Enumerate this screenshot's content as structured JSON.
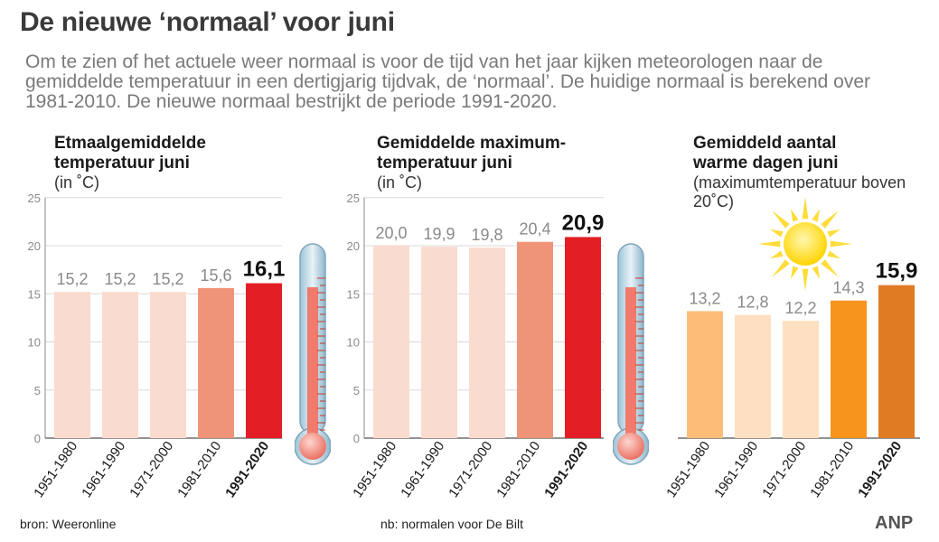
{
  "title": "De nieuwe ‘normaal’ voor juni",
  "intro": "Om te zien of het actuele weer normaal is voor de tijd van het jaar kijken meteorologen naar de gemiddelde temperatuur in een dertigjarig tijdvak, de ‘normaal’. De huidige normaal is berekend over 1981-2010. De nieuwe normaal bestrijkt de periode 1991-2020.",
  "panels": [
    {
      "title": "Etmaalgemiddelde temperatuur juni",
      "subtitle": "(in ˚C)"
    },
    {
      "title": "Gemiddelde maximum-temperatuur juni",
      "subtitle": "(in ˚C)"
    },
    {
      "title": "Gemiddeld aantal warme dagen juni",
      "subtitle": "(maximumtemperatuur boven 20˚C)"
    }
  ],
  "footer": {
    "source": "bron:  Weeronline",
    "note": "nb: normalen voor De Bilt",
    "brand": "ANP"
  },
  "icons": [
    "thermometer-icon",
    "thermometer-icon",
    "sun-icon"
  ],
  "chart_data": [
    {
      "type": "bar",
      "title": "Etmaalgemiddelde temperatuur juni",
      "ylabel": "(in ˚C)",
      "ylim": [
        0,
        25
      ],
      "yticks": [
        0,
        5,
        10,
        15,
        20,
        25
      ],
      "categories": [
        "1951-1980",
        "1961-1990",
        "1971-2000",
        "1981-2010",
        "1991-2020"
      ],
      "values": [
        15.2,
        15.2,
        15.2,
        15.6,
        16.1
      ],
      "value_labels": [
        "15,2",
        "15,2",
        "15,2",
        "15,6",
        "16,1"
      ],
      "colors": [
        "#fadbd0",
        "#fadbd0",
        "#fadbd0",
        "#f09479",
        "#e31e24"
      ],
      "grid": true
    },
    {
      "type": "bar",
      "title": "Gemiddelde maximum-temperatuur juni",
      "ylabel": "(in ˚C)",
      "ylim": [
        0,
        25
      ],
      "yticks": [
        0,
        5,
        10,
        15,
        20,
        25
      ],
      "categories": [
        "1951-1980",
        "1961-1990",
        "1971-2000",
        "1981-2010",
        "1991-2020"
      ],
      "values": [
        20.0,
        19.9,
        19.8,
        20.4,
        20.9
      ],
      "value_labels": [
        "20,0",
        "19,9",
        "19,8",
        "20,4",
        "20,9"
      ],
      "colors": [
        "#fadbd0",
        "#fadbd0",
        "#fadbd0",
        "#f09479",
        "#e31e24"
      ],
      "grid": true
    },
    {
      "type": "bar",
      "title": "Gemiddeld aantal warme dagen juni",
      "ylabel": "(maximumtemperatuur boven 20˚C)",
      "ylim": [
        0,
        25
      ],
      "yticks": [],
      "categories": [
        "1951-1980",
        "1961-1990",
        "1971-2000",
        "1981-2010",
        "1991-2020"
      ],
      "values": [
        13.2,
        12.8,
        12.2,
        14.3,
        15.9
      ],
      "value_labels": [
        "13,2",
        "12,8",
        "12,2",
        "14,3",
        "15,9"
      ],
      "colors": [
        "#fbbd77",
        "#fde0c1",
        "#fde0c1",
        "#f7941d",
        "#e07b24"
      ],
      "grid": false
    }
  ]
}
